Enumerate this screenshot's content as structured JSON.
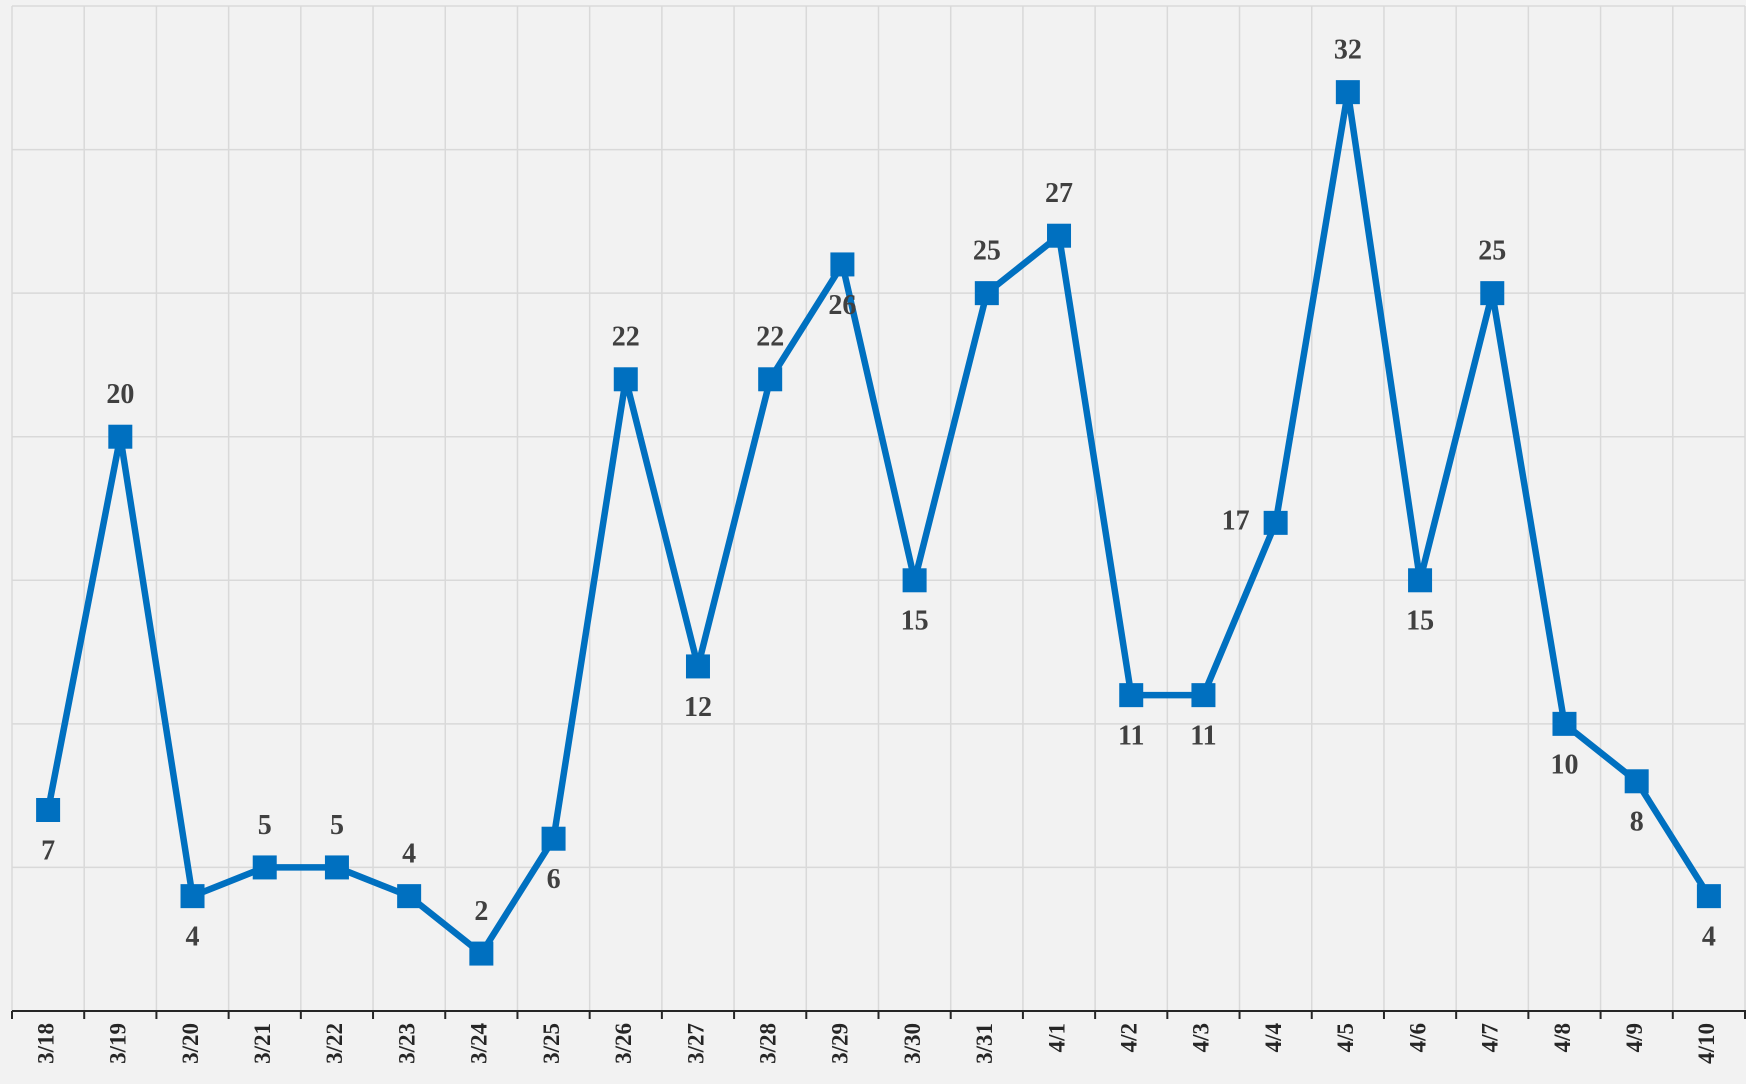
{
  "chart_data": {
    "type": "line",
    "categories": [
      "3/18",
      "3/19",
      "3/20",
      "3/21",
      "3/22",
      "3/23",
      "3/24",
      "3/25",
      "3/26",
      "3/27",
      "3/28",
      "3/29",
      "3/30",
      "3/31",
      "4/1",
      "4/2",
      "4/3",
      "4/4",
      "4/5",
      "4/6",
      "4/7",
      "4/8",
      "4/9",
      "4/10"
    ],
    "series": [
      {
        "color": "#0070c0",
        "values": [
          7,
          20,
          4,
          5,
          5,
          4,
          2,
          6,
          22,
          12,
          22,
          26,
          15,
          25,
          27,
          11,
          11,
          17,
          32,
          15,
          25,
          10,
          8,
          4
        ]
      }
    ],
    "ylim": [
      0,
      35
    ],
    "yticks": [
      0,
      5,
      10,
      15,
      20,
      25,
      30,
      35
    ],
    "grid": true
  }
}
